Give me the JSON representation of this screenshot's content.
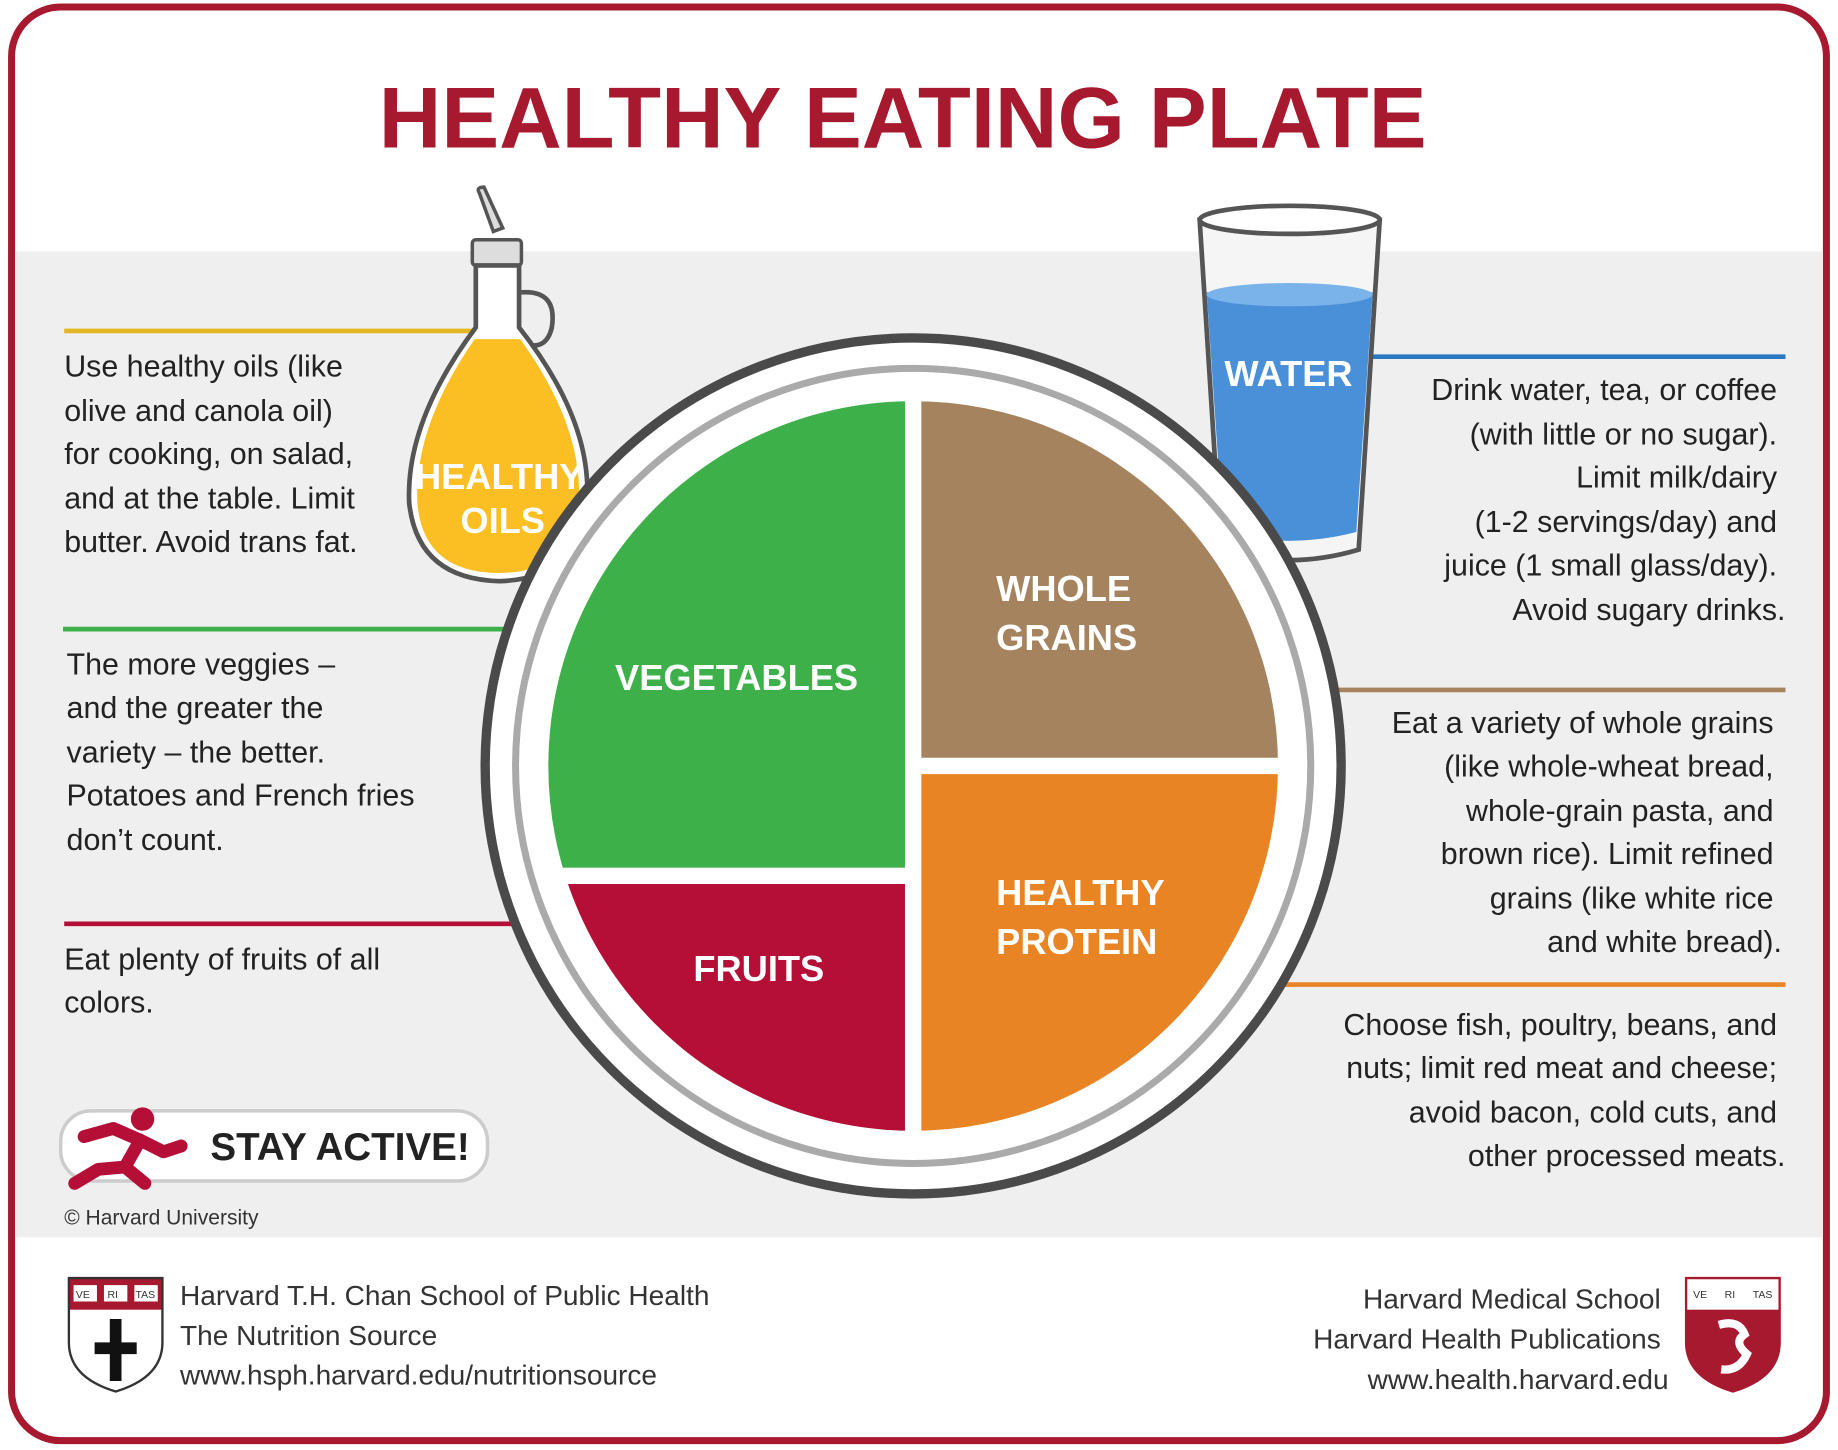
{
  "title": "HEALTHY EATING PLATE",
  "colors": {
    "brand": "#a6192e",
    "vegetables": "#3db049",
    "fruits": "#b50e37",
    "whole_grains": "#a5835f",
    "protein": "#e88424",
    "oils": "#fbbf24",
    "water": "#4a90d9"
  },
  "oils": {
    "label": [
      "HEALTHY",
      "OILS"
    ],
    "text": [
      "Use healthy oils (like",
      "olive and canola oil)",
      "for cooking, on salad,",
      "and at the table. Limit",
      "butter. Avoid trans fat."
    ]
  },
  "water": {
    "label": "WATER",
    "text": [
      "Drink water, tea, or coffee",
      "(with little or no sugar).",
      "Limit milk/dairy",
      "(1-2 servings/day) and",
      "juice (1 small glass/day).",
      "Avoid sugary drinks."
    ]
  },
  "vegetables": {
    "label": "VEGETABLES",
    "text": [
      "The more veggies –",
      "and the greater the",
      "variety – the better.",
      "Potatoes and French fries",
      "don’t count."
    ]
  },
  "whole_grains": {
    "label": [
      "WHOLE",
      "GRAINS"
    ],
    "text": [
      "Eat a variety of whole grains",
      "(like whole-wheat bread,",
      "whole-grain pasta, and",
      "brown rice). Limit refined",
      "grains (like white rice",
      "and white bread)."
    ]
  },
  "fruits": {
    "label": "FRUITS",
    "text": [
      "Eat plenty of fruits of all",
      "colors."
    ]
  },
  "protein": {
    "label": [
      "HEALTHY",
      "PROTEIN"
    ],
    "text": [
      "Choose fish, poultry, beans, and",
      "nuts;  limit red meat and cheese;",
      "avoid bacon, cold cuts,  and",
      "other processed meats."
    ]
  },
  "stay_active": "STAY ACTIVE!",
  "copyright": "© Harvard University",
  "footer": {
    "left": [
      "Harvard T.H. Chan School of Public Health",
      "The Nutrition Source",
      "www.hsph.harvard.edu/nutritionsource"
    ],
    "right": [
      "Harvard Medical School",
      "Harvard Health Publications",
      "www.health.harvard.edu"
    ],
    "shield_text": [
      "VE",
      "RI",
      "TAS"
    ]
  }
}
